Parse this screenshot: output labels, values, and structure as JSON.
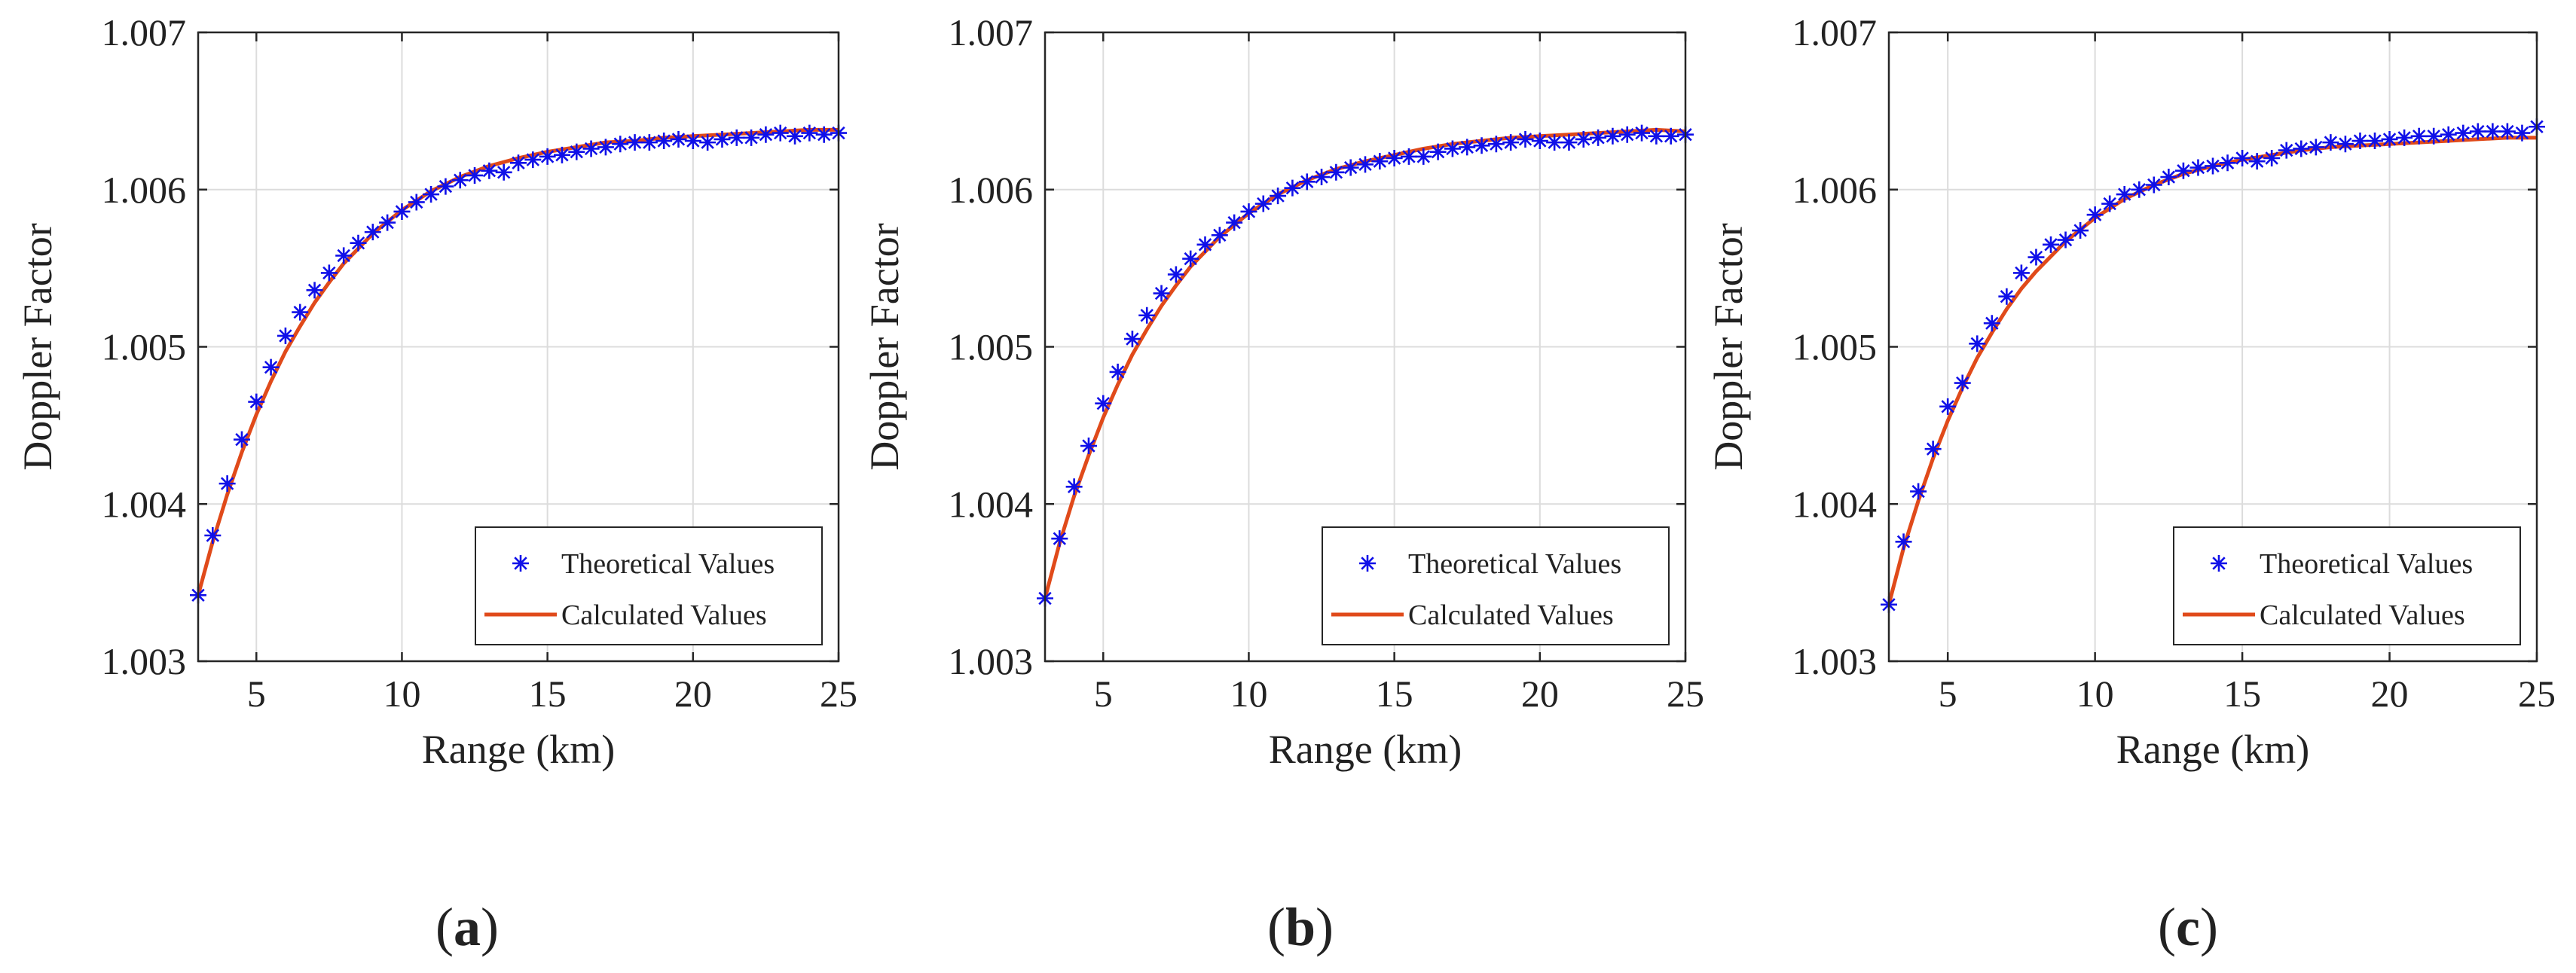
{
  "figure": {
    "captions": [
      "(a)",
      "(b)",
      "(c)"
    ]
  },
  "colors": {
    "theoretical": "#1010e8",
    "calculated": "#e04a1a",
    "grid": "#dcdcdc",
    "axis": "#262626"
  },
  "chart_data": [
    {
      "type": "line",
      "panel": "a",
      "xlabel": "Range (km)",
      "ylabel": "Doppler Factor",
      "xlim": [
        3,
        25
      ],
      "ylim": [
        1.003,
        1.007
      ],
      "xticks": [
        5,
        10,
        15,
        20,
        25
      ],
      "yticks": [
        1.003,
        1.004,
        1.005,
        1.006,
        1.007
      ],
      "xtick_labels": [
        "5",
        "10",
        "15",
        "20",
        "25"
      ],
      "ytick_labels": [
        "1.003",
        "1.004",
        "1.005",
        "1.006",
        "1.007"
      ],
      "grid": true,
      "legend": {
        "position": "lower-right",
        "entries": [
          "Theoretical Values",
          "Calculated Values"
        ]
      },
      "series": [
        {
          "name": "Theoretical Values",
          "marker": "asterisk",
          "x": [
            3.0,
            3.5,
            4.0,
            4.5,
            5.0,
            5.5,
            6.0,
            6.5,
            7.0,
            7.5,
            8.0,
            8.5,
            9.0,
            9.5,
            10.0,
            10.5,
            11.0,
            11.5,
            12.0,
            12.5,
            13.0,
            13.5,
            14.0,
            14.5,
            15.0,
            15.5,
            16.0,
            16.5,
            17.0,
            17.5,
            18.0,
            18.5,
            19.0,
            19.5,
            20.0,
            20.5,
            21.0,
            21.5,
            22.0,
            22.5,
            23.0,
            23.5,
            24.0,
            24.5,
            25.0
          ],
          "y": [
            1.00342,
            1.0038,
            1.00413,
            1.00441,
            1.00465,
            1.00487,
            1.00507,
            1.00522,
            1.00536,
            1.00547,
            1.00558,
            1.00566,
            1.00573,
            1.00579,
            1.00586,
            1.00592,
            1.00597,
            1.00602,
            1.00606,
            1.00609,
            1.00612,
            1.00611,
            1.00617,
            1.00619,
            1.00621,
            1.00622,
            1.00624,
            1.00626,
            1.00627,
            1.00629,
            1.0063,
            1.0063,
            1.00631,
            1.00632,
            1.00631,
            1.0063,
            1.00632,
            1.00633,
            1.00633,
            1.00635,
            1.00636,
            1.00634,
            1.00636,
            1.00635,
            1.00636
          ]
        },
        {
          "name": "Calculated Values",
          "style": "line",
          "x": [
            3,
            3.5,
            4,
            4.5,
            5,
            5.5,
            6,
            6.5,
            7,
            7.5,
            8,
            9,
            10,
            11,
            12,
            13,
            14,
            15,
            16,
            17,
            18,
            19,
            20,
            21,
            22,
            23,
            24,
            25
          ],
          "y": [
            1.00342,
            1.00376,
            1.00406,
            1.00433,
            1.00457,
            1.00478,
            1.00497,
            1.00513,
            1.00528,
            1.00541,
            1.00553,
            1.00572,
            1.00587,
            1.00599,
            1.00608,
            1.00615,
            1.0062,
            1.00624,
            1.00627,
            1.0063,
            1.00631,
            1.00633,
            1.00634,
            1.00635,
            1.00636,
            1.00637,
            1.00638,
            1.00638
          ]
        }
      ]
    },
    {
      "type": "line",
      "panel": "b",
      "xlabel": "Range (km)",
      "ylabel": "Doppler Factor",
      "xlim": [
        3,
        25
      ],
      "ylim": [
        1.003,
        1.007
      ],
      "xticks": [
        5,
        10,
        15,
        20,
        25
      ],
      "yticks": [
        1.003,
        1.004,
        1.005,
        1.006,
        1.007
      ],
      "xtick_labels": [
        "5",
        "10",
        "15",
        "20",
        "25"
      ],
      "ytick_labels": [
        "1.003",
        "1.004",
        "1.005",
        "1.006",
        "1.007"
      ],
      "grid": true,
      "legend": {
        "position": "lower-right",
        "entries": [
          "Theoretical Values",
          "Calculated Values"
        ]
      },
      "series": [
        {
          "name": "Theoretical Values",
          "marker": "asterisk",
          "x": [
            3.0,
            3.5,
            4.0,
            4.5,
            5.0,
            5.5,
            6.0,
            6.5,
            7.0,
            7.5,
            8.0,
            8.5,
            9.0,
            9.5,
            10.0,
            10.5,
            11.0,
            11.5,
            12.0,
            12.5,
            13.0,
            13.5,
            14.0,
            14.5,
            15.0,
            15.5,
            16.0,
            16.5,
            17.0,
            17.5,
            18.0,
            18.5,
            19.0,
            19.5,
            20.0,
            20.5,
            21.0,
            21.5,
            22.0,
            22.5,
            23.0,
            23.5,
            24.0,
            24.5,
            25.0
          ],
          "y": [
            1.0034,
            1.00378,
            1.00411,
            1.00437,
            1.00464,
            1.00484,
            1.00505,
            1.0052,
            1.00534,
            1.00546,
            1.00556,
            1.00565,
            1.00571,
            1.00579,
            1.00586,
            1.00591,
            1.00596,
            1.00601,
            1.00605,
            1.00608,
            1.00611,
            1.00614,
            1.00616,
            1.00618,
            1.0062,
            1.00621,
            1.00621,
            1.00624,
            1.00626,
            1.00627,
            1.00628,
            1.00629,
            1.0063,
            1.00632,
            1.00631,
            1.0063,
            1.0063,
            1.00632,
            1.00633,
            1.00634,
            1.00635,
            1.00636,
            1.00634,
            1.00634,
            1.00635
          ]
        },
        {
          "name": "Calculated Values",
          "style": "line",
          "x": [
            3,
            3.5,
            4,
            4.5,
            5,
            5.5,
            6,
            6.5,
            7,
            7.5,
            8,
            9,
            10,
            11,
            12,
            13,
            14,
            15,
            16,
            17,
            18,
            19,
            20,
            21,
            22,
            23,
            24,
            25
          ],
          "y": [
            1.0034,
            1.00375,
            1.00405,
            1.00431,
            1.00455,
            1.00476,
            1.00495,
            1.00511,
            1.00526,
            1.00539,
            1.00551,
            1.0057,
            1.00585,
            1.00597,
            1.00606,
            1.00613,
            1.00618,
            1.00622,
            1.00626,
            1.00629,
            1.00631,
            1.00633,
            1.00634,
            1.00635,
            1.00636,
            1.00637,
            1.00638,
            1.00637
          ]
        }
      ]
    },
    {
      "type": "line",
      "panel": "c",
      "xlabel": "Range (km)",
      "ylabel": "Doppler Factor",
      "xlim": [
        3,
        25
      ],
      "ylim": [
        1.003,
        1.007
      ],
      "xticks": [
        5,
        10,
        15,
        20,
        25
      ],
      "yticks": [
        1.003,
        1.004,
        1.005,
        1.006,
        1.007
      ],
      "xtick_labels": [
        "5",
        "10",
        "15",
        "20",
        "25"
      ],
      "ytick_labels": [
        "1.003",
        "1.004",
        "1.005",
        "1.006",
        "1.007"
      ],
      "grid": true,
      "legend": {
        "position": "lower-right",
        "entries": [
          "Theoretical Values",
          "Calculated Values"
        ]
      },
      "series": [
        {
          "name": "Theoretical Values",
          "marker": "asterisk",
          "x": [
            3.0,
            3.5,
            4.0,
            4.5,
            5.0,
            5.5,
            6.0,
            6.5,
            7.0,
            7.5,
            8.0,
            8.5,
            9.0,
            9.5,
            10.0,
            10.5,
            11.0,
            11.5,
            12.0,
            12.5,
            13.0,
            13.5,
            14.0,
            14.5,
            15.0,
            15.5,
            16.0,
            16.5,
            17.0,
            17.5,
            18.0,
            18.5,
            19.0,
            19.5,
            20.0,
            20.5,
            21.0,
            21.5,
            22.0,
            22.5,
            23.0,
            23.5,
            24.0,
            24.5,
            25.0
          ],
          "y": [
            1.00336,
            1.00376,
            1.00408,
            1.00435,
            1.00462,
            1.00477,
            1.00502,
            1.00515,
            1.00532,
            1.00547,
            1.00557,
            1.00565,
            1.00568,
            1.00574,
            1.00584,
            1.00591,
            1.00597,
            1.006,
            1.00603,
            1.00608,
            1.00612,
            1.00614,
            1.00615,
            1.00617,
            1.0062,
            1.00618,
            1.0062,
            1.00625,
            1.00626,
            1.00627,
            1.0063,
            1.00629,
            1.00631,
            1.00631,
            1.00632,
            1.00633,
            1.00634,
            1.00634,
            1.00635,
            1.00636,
            1.00637,
            1.00637,
            1.00637,
            1.00636,
            1.0064
          ]
        },
        {
          "name": "Calculated Values",
          "style": "line",
          "x": [
            3,
            3.5,
            4,
            4.5,
            5,
            5.5,
            6,
            6.5,
            7,
            7.5,
            8,
            9,
            10,
            11,
            12,
            13,
            14,
            15,
            16,
            17,
            18,
            19,
            20,
            21,
            22,
            23,
            24,
            25
          ],
          "y": [
            1.00336,
            1.00372,
            1.00402,
            1.00429,
            1.00453,
            1.00474,
            1.00493,
            1.00509,
            1.00524,
            1.00537,
            1.00548,
            1.00567,
            1.00582,
            1.00594,
            1.00603,
            1.0061,
            1.00615,
            1.00619,
            1.00622,
            1.00625,
            1.00627,
            1.00628,
            1.00629,
            1.0063,
            1.00631,
            1.00632,
            1.00633,
            1.00633
          ]
        }
      ]
    }
  ]
}
